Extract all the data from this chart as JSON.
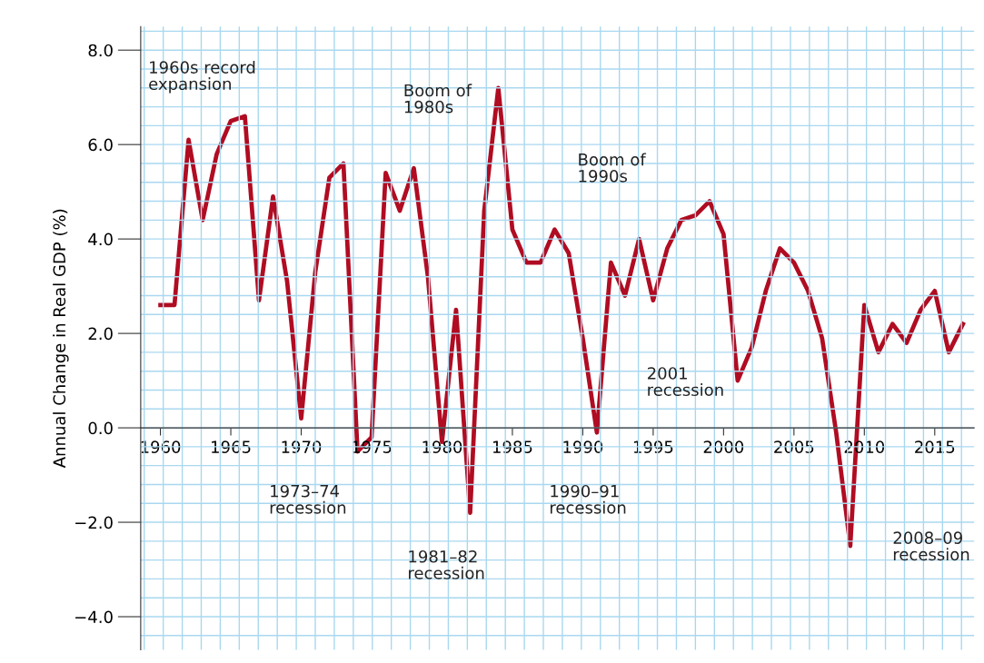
{
  "chart_data": {
    "type": "line",
    "ylabel": "Annual Change in Real GDP (%)",
    "x": [
      1960,
      1961,
      1962,
      1963,
      1964,
      1965,
      1966,
      1967,
      1968,
      1969,
      1970,
      1971,
      1972,
      1973,
      1974,
      1975,
      1976,
      1977,
      1978,
      1979,
      1980,
      1981,
      1982,
      1983,
      1984,
      1985,
      1986,
      1987,
      1988,
      1989,
      1990,
      1991,
      1992,
      1993,
      1994,
      1995,
      1996,
      1997,
      1998,
      1999,
      2000,
      2001,
      2002,
      2003,
      2004,
      2005,
      2006,
      2007,
      2008,
      2009,
      2010,
      2011,
      2012,
      2013,
      2014,
      2015,
      2016,
      2017
    ],
    "series": [
      {
        "color": "#b00c22",
        "values": [
          2.6,
          2.6,
          6.1,
          4.4,
          5.8,
          6.5,
          6.6,
          2.7,
          4.9,
          3.1,
          0.2,
          3.3,
          5.3,
          5.6,
          -0.5,
          -0.2,
          5.4,
          4.6,
          5.5,
          3.2,
          -0.3,
          2.5,
          -1.8,
          4.6,
          7.2,
          4.2,
          3.5,
          3.5,
          4.2,
          3.7,
          1.9,
          -0.1,
          3.5,
          2.8,
          4.0,
          2.7,
          3.8,
          4.4,
          4.5,
          4.8,
          4.1,
          1.0,
          1.7,
          2.9,
          3.8,
          3.5,
          2.9,
          1.9,
          -0.1,
          -2.5,
          2.6,
          1.6,
          2.2,
          1.8,
          2.5,
          2.9,
          1.6,
          2.2
        ]
      }
    ],
    "xlim": [
      1958.6,
      2017.8
    ],
    "ylim": [
      -4.7,
      8.5
    ],
    "xticks": [
      1960,
      1965,
      1970,
      1975,
      1980,
      1985,
      1990,
      1995,
      2000,
      2005,
      2010,
      2015
    ],
    "yticks": [
      {
        "value": -4,
        "label": "−4.0"
      },
      {
        "value": -2,
        "label": "−2.0"
      },
      {
        "value": 0,
        "label": "0.0"
      },
      {
        "value": 2,
        "label": "2.0"
      },
      {
        "value": 4,
        "label": "4.0"
      },
      {
        "value": 6,
        "label": "6.0"
      },
      {
        "value": 8,
        "label": "8.0"
      }
    ],
    "grid": true,
    "marker": "none",
    "line_style": "solid",
    "legend": false,
    "annotations": [
      "1960s record\nexpansion",
      "Boom of\n1980s",
      "Boom of\n1990s",
      "2001\nrecession",
      "1973–74\nrecession",
      "1981–82\nrecession",
      "1990–91\nrecession",
      "2008–09\nrecession"
    ]
  }
}
